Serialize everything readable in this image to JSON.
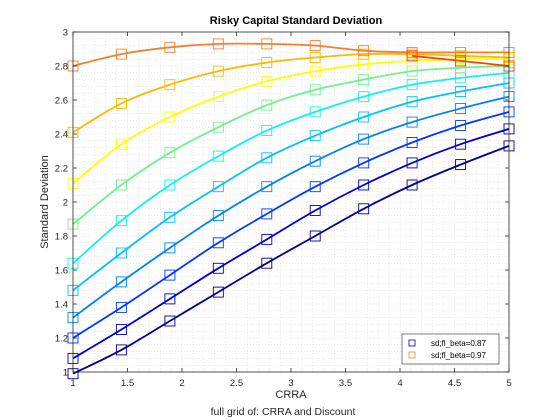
{
  "chart_data": {
    "type": "line",
    "title": "Risky Capital Standard Deviation",
    "xlabel": "CRRA",
    "ylabel": "Standard Deviation",
    "footnote": "full grid of: CRRA and Discount",
    "xlim": [
      1,
      5
    ],
    "ylim": [
      1,
      3
    ],
    "xticks": [
      "1",
      "1.5",
      "2",
      "2.5",
      "3",
      "3.5",
      "4",
      "4.5",
      "5"
    ],
    "yticks": [
      "1",
      "1.2",
      "1.4",
      "1.6",
      "1.8",
      "2",
      "2.2",
      "2.4",
      "2.6",
      "2.8",
      "3"
    ],
    "grid": "minor-dotted",
    "legend_position": "bottom-right",
    "legend": [
      {
        "label": "sd;fl_beta=0.87",
        "color": "#0000aa"
      },
      {
        "label": "sd;fl_beta=0.97",
        "color": "#f08030"
      }
    ],
    "x": [
      1.0,
      1.444,
      1.889,
      2.333,
      2.778,
      3.222,
      3.667,
      4.111,
      4.556,
      5.0
    ],
    "series": [
      {
        "color": "#00008e",
        "values": [
          0.99,
          1.13,
          1.3,
          1.47,
          1.64,
          1.8,
          1.96,
          2.1,
          2.22,
          2.33
        ]
      },
      {
        "color": "#0000c8",
        "values": [
          1.08,
          1.25,
          1.43,
          1.61,
          1.78,
          1.95,
          2.1,
          2.23,
          2.34,
          2.43
        ]
      },
      {
        "color": "#0038ff",
        "values": [
          1.2,
          1.38,
          1.57,
          1.76,
          1.93,
          2.09,
          2.23,
          2.35,
          2.45,
          2.53
        ]
      },
      {
        "color": "#0080ff",
        "values": [
          1.32,
          1.53,
          1.73,
          1.92,
          2.09,
          2.24,
          2.37,
          2.47,
          2.55,
          2.62
        ]
      },
      {
        "color": "#00c0ff",
        "values": [
          1.48,
          1.7,
          1.91,
          2.09,
          2.26,
          2.39,
          2.5,
          2.59,
          2.65,
          2.7
        ]
      },
      {
        "color": "#10f0f0",
        "values": [
          1.64,
          1.89,
          2.1,
          2.27,
          2.42,
          2.53,
          2.62,
          2.69,
          2.73,
          2.76
        ]
      },
      {
        "color": "#70f090",
        "values": [
          1.87,
          2.1,
          2.29,
          2.44,
          2.57,
          2.66,
          2.72,
          2.77,
          2.79,
          2.8
        ]
      },
      {
        "color": "#ffff00",
        "values": [
          2.11,
          2.34,
          2.5,
          2.62,
          2.71,
          2.77,
          2.81,
          2.83,
          2.84,
          2.84
        ]
      },
      {
        "color": "#ffb800",
        "values": [
          2.41,
          2.58,
          2.69,
          2.77,
          2.82,
          2.85,
          2.87,
          2.87,
          2.86,
          2.85
        ]
      },
      {
        "color": "#f08030",
        "values": [
          2.8,
          2.87,
          2.91,
          2.93,
          2.93,
          2.92,
          2.89,
          2.88,
          2.88,
          2.88
        ]
      },
      {
        "color": "#ff4000",
        "values": [
          null,
          null,
          null,
          null,
          null,
          null,
          null,
          2.86,
          2.83,
          2.8
        ]
      }
    ]
  }
}
